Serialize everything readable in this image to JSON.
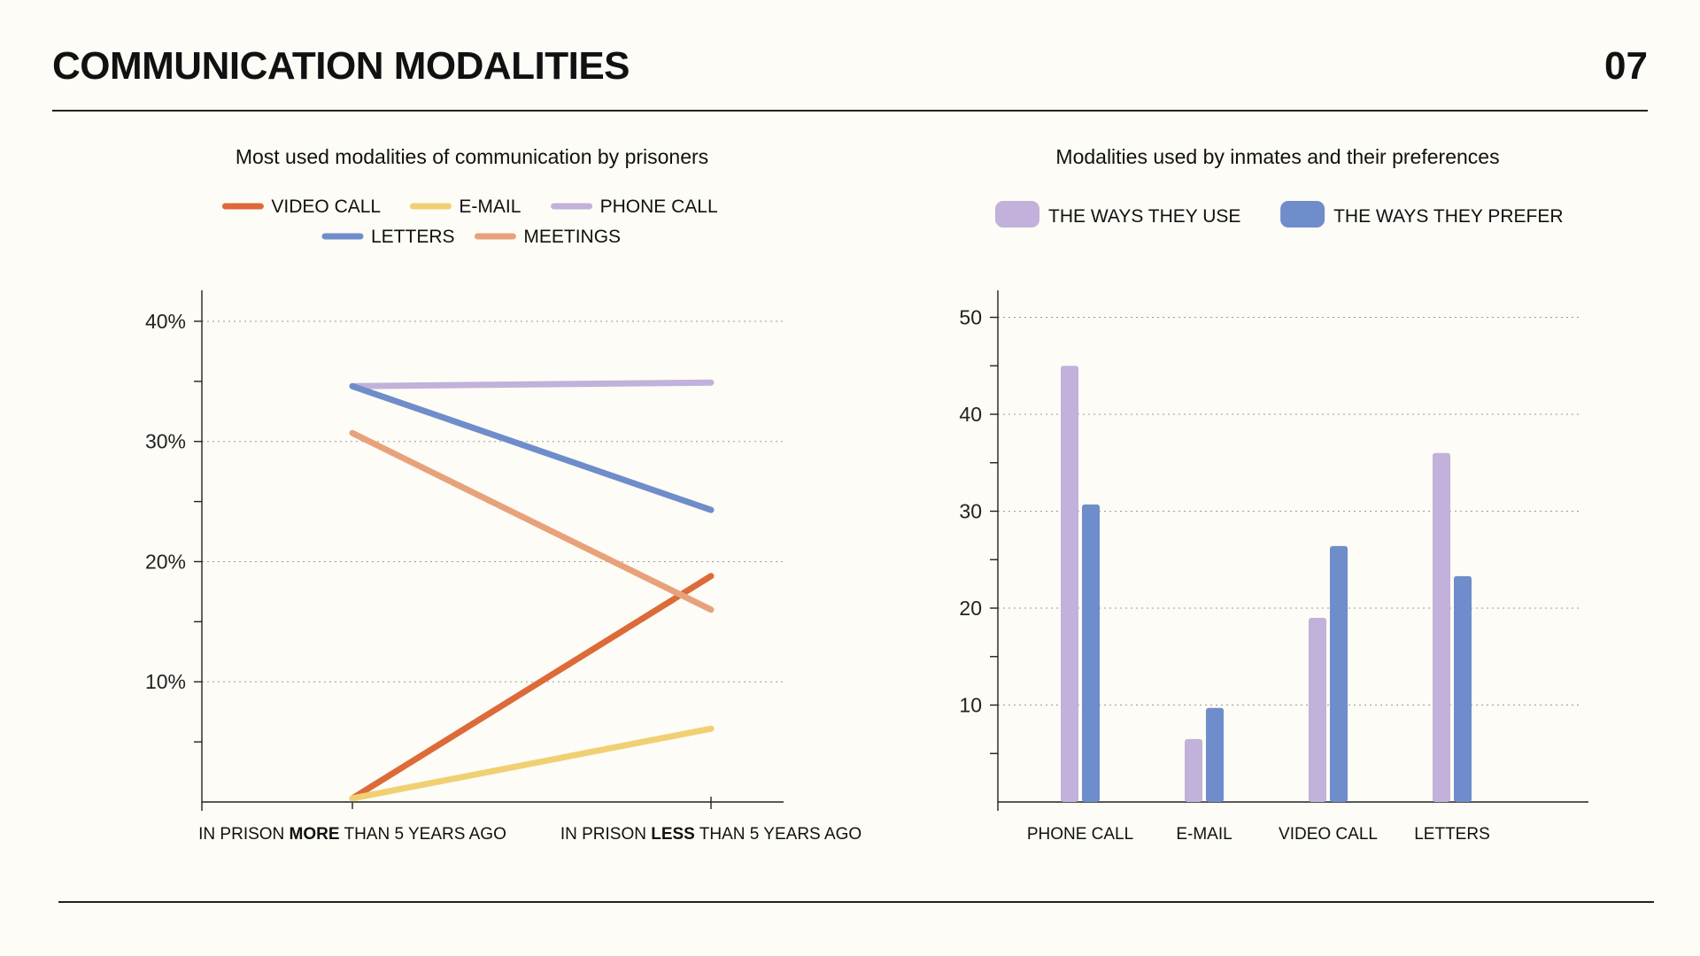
{
  "page": {
    "title": "COMMUNICATION MODALITIES",
    "number": "07"
  },
  "chart_data": [
    {
      "type": "line",
      "title": "Most used modalities of communication by prisoners",
      "categories": [
        {
          "pre": "IN PRISON ",
          "bold": "MORE",
          "post": " THAN 5 YEARS AGO"
        },
        {
          "pre": "IN PRISON ",
          "bold": "LESS",
          "post": " THAN 5 YEARS AGO"
        }
      ],
      "y_unit": "%",
      "ylim": [
        0,
        43
      ],
      "y_ticks": [
        10,
        20,
        30,
        40
      ],
      "y_tick_labels": [
        "10%",
        "20%",
        "30%",
        "40%"
      ],
      "grid": true,
      "legend": "top",
      "series": [
        {
          "name": "VIDEO CALL",
          "color": "#dd6a39",
          "values": [
            0.3,
            18.8
          ]
        },
        {
          "name": "E-MAIL",
          "color": "#f0d073",
          "values": [
            0.3,
            6.1
          ]
        },
        {
          "name": "PHONE CALL",
          "color": "#c2b1da",
          "values": [
            34.6,
            34.9
          ]
        },
        {
          "name": "LETTERS",
          "color": "#6f8ccb",
          "values": [
            34.6,
            24.3
          ]
        },
        {
          "name": "MEETINGS",
          "color": "#e8a27b",
          "values": [
            30.7,
            16.0
          ]
        }
      ]
    },
    {
      "type": "bar",
      "title": "Modalities used by inmates and their preferences",
      "categories": [
        "PHONE CALL",
        "E-MAIL",
        "VIDEO CALL",
        "LETTERS"
      ],
      "ylim": [
        0,
        52
      ],
      "y_ticks": [
        10,
        20,
        30,
        40,
        50
      ],
      "grid": true,
      "legend": "top",
      "series": [
        {
          "name": "THE WAYS THEY USE",
          "color": "#c2b1da",
          "values": [
            45,
            6.5,
            19,
            36
          ]
        },
        {
          "name": "THE WAYS THEY PREFER",
          "color": "#6f8ccb",
          "values": [
            30.7,
            9.7,
            26.4,
            23.3
          ]
        }
      ]
    }
  ]
}
